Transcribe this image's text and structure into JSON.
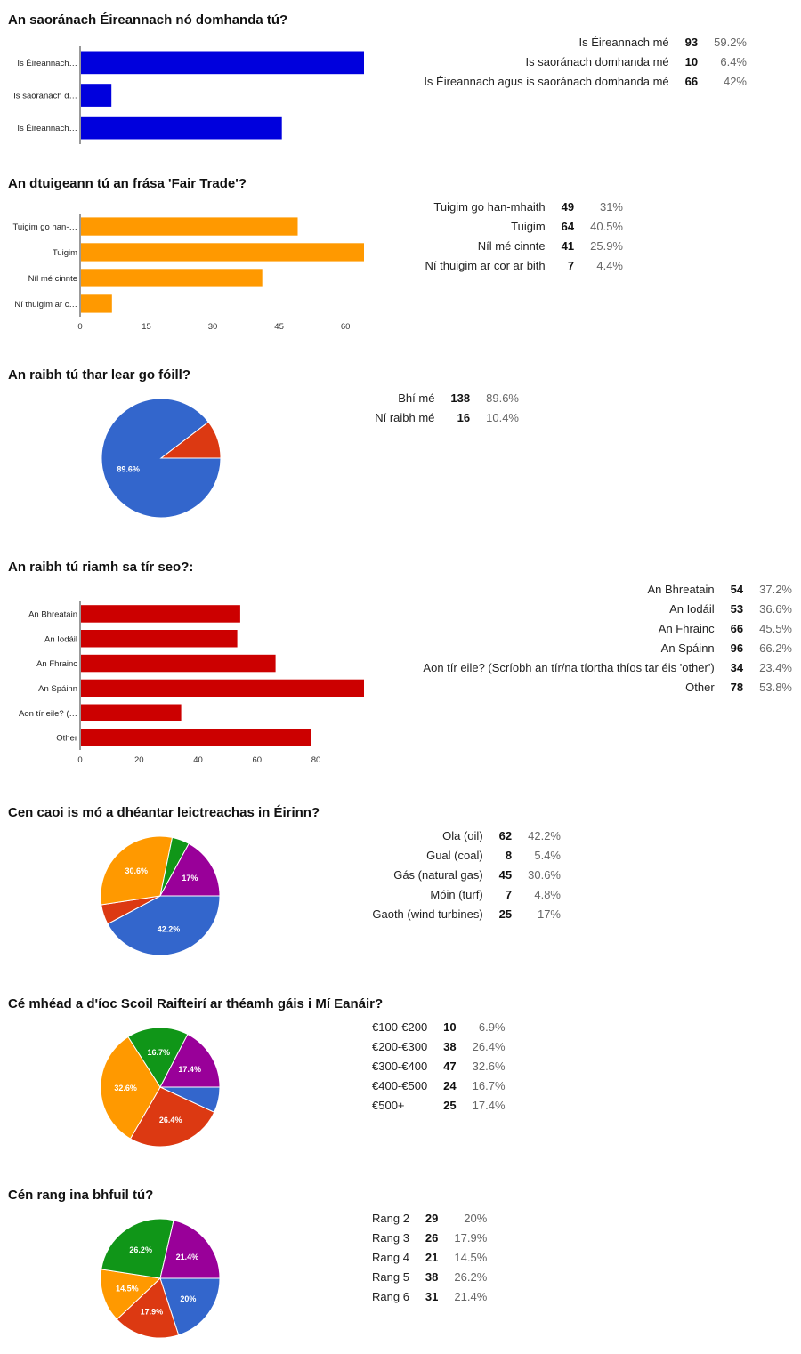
{
  "colors": {
    "blue": "#3366cc",
    "red": "#dc3912",
    "orange": "#ff9900",
    "green": "#109618",
    "purple": "#990099",
    "bar_blue": "#0000dd",
    "bar_orange": "#ff9900",
    "bar_red": "#cc0000"
  },
  "questions": [
    {
      "title": "An saoránach Éireannach nó domhanda tú?",
      "rows": [
        {
          "label": "Is Éireannach mé",
          "count": "93",
          "pct": "59.2%"
        },
        {
          "label": "Is saoránach domhanda mé",
          "count": "10",
          "pct": "6.4%"
        },
        {
          "label": "Is Éireannach agus is saoránach domhanda mé",
          "count": "66",
          "pct": "42%"
        }
      ]
    },
    {
      "title": "An dtuigeann tú an frása 'Fair Trade'?",
      "rows": [
        {
          "label": "Tuigim go han-mhaith",
          "count": "49",
          "pct": "31%"
        },
        {
          "label": "Tuigim",
          "count": "64",
          "pct": "40.5%"
        },
        {
          "label": "Níl mé cinnte",
          "count": "41",
          "pct": "25.9%"
        },
        {
          "label": "Ní thuigim ar cor ar bith",
          "count": "7",
          "pct": "4.4%"
        }
      ]
    },
    {
      "title": "An raibh tú thar lear go fóill?",
      "rows": [
        {
          "label": "Bhí mé",
          "count": "138",
          "pct": "89.6%"
        },
        {
          "label": "Ní raibh mé",
          "count": "16",
          "pct": "10.4%"
        }
      ]
    },
    {
      "title": "An raibh tú riamh sa tír seo?:",
      "rows": [
        {
          "label": "An Bhreatain",
          "count": "54",
          "pct": "37.2%"
        },
        {
          "label": "An Iodáil",
          "count": "53",
          "pct": "36.6%"
        },
        {
          "label": "An Fhrainc",
          "count": "66",
          "pct": "45.5%"
        },
        {
          "label": "An Spáinn",
          "count": "96",
          "pct": "66.2%"
        },
        {
          "label": "Aon tír eile? (Scríobh an tír/na tíortha thíos tar éis 'other')",
          "count": "34",
          "pct": "23.4%"
        },
        {
          "label": "Other",
          "count": "78",
          "pct": "53.8%"
        }
      ]
    },
    {
      "title": "Cen caoi is mó a dhéantar leictreachas in Éirinn?",
      "rows": [
        {
          "label": "Ola (oil)",
          "count": "62",
          "pct": "42.2%"
        },
        {
          "label": "Gual (coal)",
          "count": "8",
          "pct": "5.4%"
        },
        {
          "label": "Gás (natural gas)",
          "count": "45",
          "pct": "30.6%"
        },
        {
          "label": "Móin (turf)",
          "count": "7",
          "pct": "4.8%"
        },
        {
          "label": "Gaoth (wind turbines)",
          "count": "25",
          "pct": "17%"
        }
      ]
    },
    {
      "title": "Cé mhéad a d'íoc Scoil Raifteirí ar théamh gáis i Mí Eanáir?",
      "rows": [
        {
          "label": "€100-€200",
          "count": "10",
          "pct": "6.9%"
        },
        {
          "label": "€200-€300",
          "count": "38",
          "pct": "26.4%"
        },
        {
          "label": "€300-€400",
          "count": "47",
          "pct": "32.6%"
        },
        {
          "label": "€400-€500",
          "count": "24",
          "pct": "16.7%"
        },
        {
          "label": "€500+",
          "count": "25",
          "pct": "17.4%"
        }
      ]
    },
    {
      "title": "Cén rang ina bhfuil tú?",
      "rows": [
        {
          "label": "Rang 2",
          "count": "29",
          "pct": "20%"
        },
        {
          "label": "Rang 3",
          "count": "26",
          "pct": "17.9%"
        },
        {
          "label": "Rang 4",
          "count": "21",
          "pct": "14.5%"
        },
        {
          "label": "Rang 5",
          "count": "38",
          "pct": "26.2%"
        },
        {
          "label": "Rang 6",
          "count": "31",
          "pct": "21.4%"
        }
      ]
    }
  ],
  "chart_data": [
    {
      "type": "bar",
      "orientation": "horizontal",
      "categories": [
        "Is Éireannach…",
        "Is saoránach d…",
        "Is Éireannach…"
      ],
      "values": [
        93,
        10,
        66
      ],
      "xlim": [
        0,
        93
      ],
      "ticks": [],
      "color": "bar_blue"
    },
    {
      "type": "bar",
      "orientation": "horizontal",
      "categories": [
        "Tuigim go han-…",
        "Tuigim",
        "Níl mé cinnte",
        "Ní thuigim ar c…"
      ],
      "values": [
        49,
        64,
        41,
        7
      ],
      "xlim": [
        0,
        64
      ],
      "ticks": [
        "0",
        "15",
        "30",
        "45",
        "60"
      ],
      "color": "bar_orange"
    },
    {
      "type": "pie",
      "slices": [
        {
          "value": 138,
          "color": "blue",
          "label": "89.6%"
        },
        {
          "value": 16,
          "color": "red",
          "label": ""
        }
      ]
    },
    {
      "type": "bar",
      "orientation": "horizontal",
      "categories": [
        "An Bhreatain",
        "An Iodáil",
        "An Fhrainc",
        "An Spáinn",
        "Aon tír eile? (…",
        "Other"
      ],
      "values": [
        54,
        53,
        66,
        96,
        34,
        78
      ],
      "xlim": [
        0,
        96
      ],
      "ticks": [
        "0",
        "20",
        "40",
        "60",
        "80"
      ],
      "color": "bar_red"
    },
    {
      "type": "pie",
      "slices": [
        {
          "value": 62,
          "color": "blue",
          "label": "42.2%"
        },
        {
          "value": 8,
          "color": "red",
          "label": ""
        },
        {
          "value": 45,
          "color": "orange",
          "label": "30.6%"
        },
        {
          "value": 7,
          "color": "green",
          "label": ""
        },
        {
          "value": 25,
          "color": "purple",
          "label": "17%"
        }
      ]
    },
    {
      "type": "pie",
      "slices": [
        {
          "value": 10,
          "color": "blue",
          "label": ""
        },
        {
          "value": 38,
          "color": "red",
          "label": "26.4%"
        },
        {
          "value": 47,
          "color": "orange",
          "label": "32.6%"
        },
        {
          "value": 24,
          "color": "green",
          "label": "16.7%"
        },
        {
          "value": 25,
          "color": "purple",
          "label": "17.4%"
        }
      ]
    },
    {
      "type": "pie",
      "slices": [
        {
          "value": 29,
          "color": "blue",
          "label": "20%"
        },
        {
          "value": 26,
          "color": "red",
          "label": "17.9%"
        },
        {
          "value": 21,
          "color": "orange",
          "label": "14.5%"
        },
        {
          "value": 38,
          "color": "green",
          "label": "26.2%"
        },
        {
          "value": 31,
          "color": "purple",
          "label": "21.4%"
        }
      ]
    }
  ]
}
